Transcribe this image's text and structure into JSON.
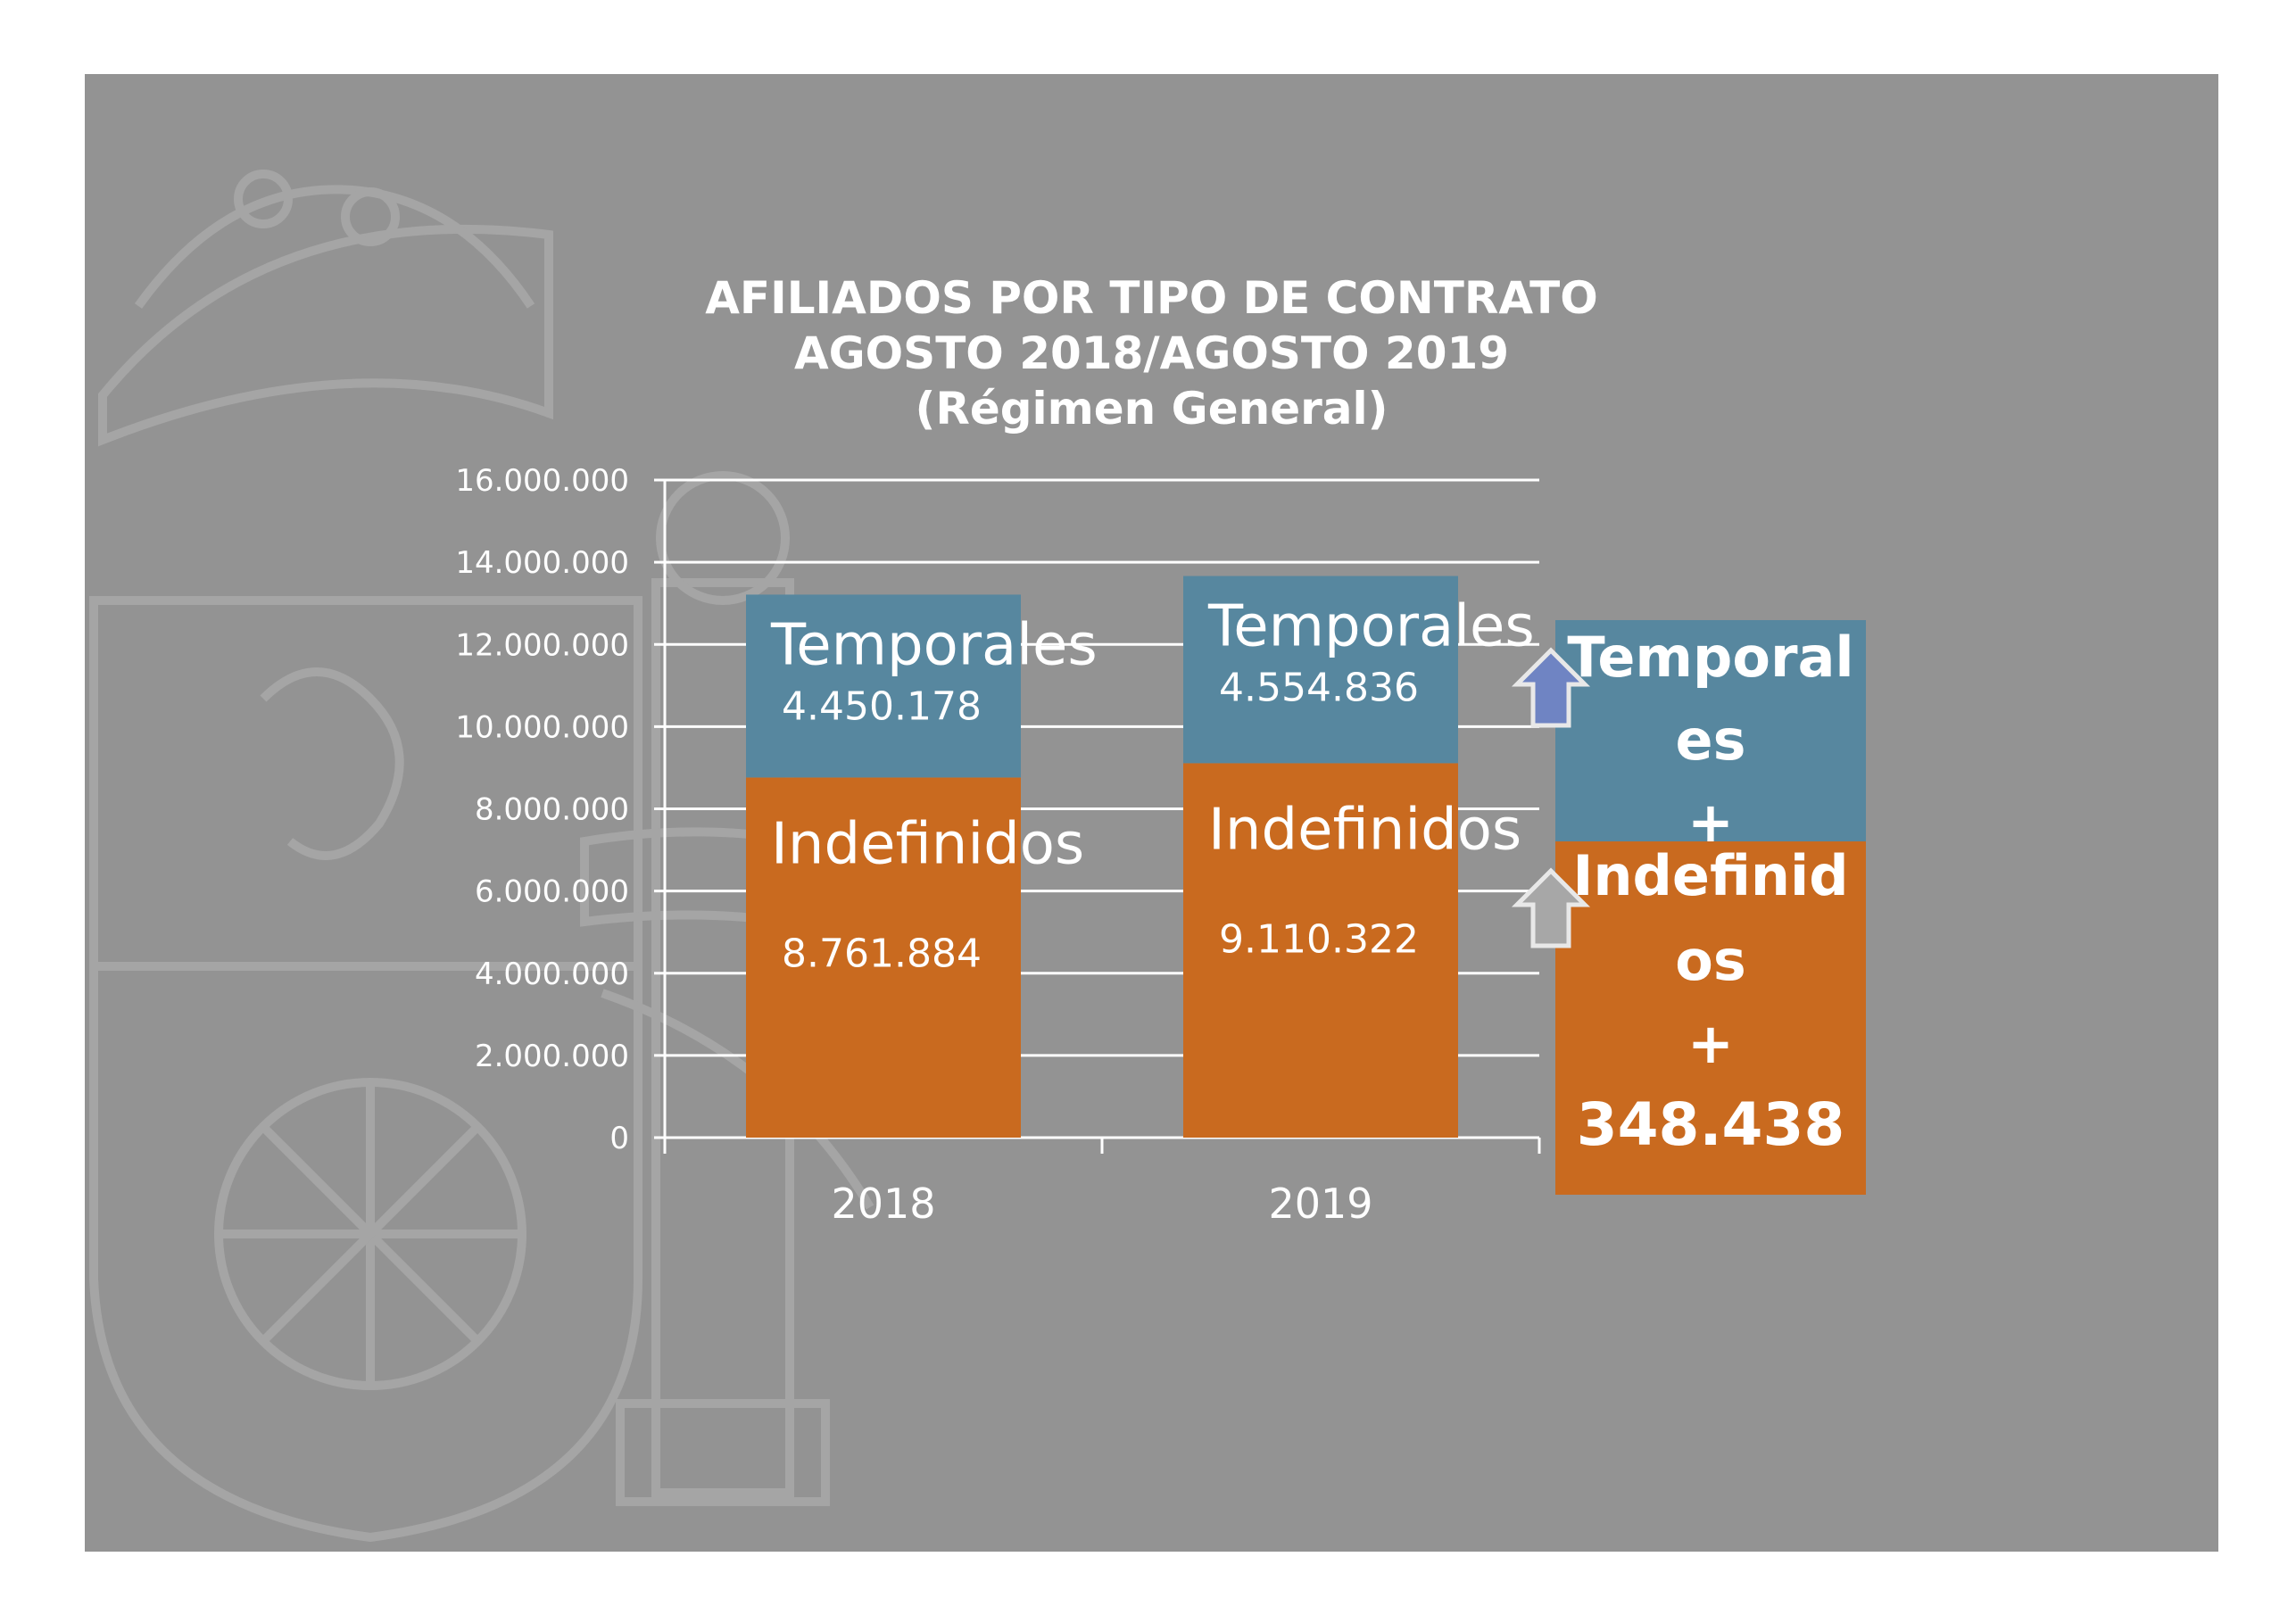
{
  "colors": {
    "slide_background": "#939393",
    "temporales": "#57879f",
    "indefinidos": "#c96a1f",
    "gridline": "#ffffff",
    "text": "#ffffff",
    "arrow_up_temporales": "#6f84c3",
    "arrow_up_indefinidos": "#c96a1f"
  },
  "chart_data": {
    "type": "bar",
    "stacked": true,
    "title": "AFILIADOS POR TIPO DE CONTRATO",
    "subtitle": "AGOSTO 2018/AGOSTO 2019",
    "subtitle2": "(Régimen General)",
    "categories": [
      "2018",
      "2019"
    ],
    "series": [
      {
        "name": "Indefinidos",
        "values": [
          8761884,
          9110322
        ],
        "value_labels": [
          "8.761.884",
          "9.110.322"
        ]
      },
      {
        "name": "Temporales",
        "values": [
          4450178,
          4554836
        ],
        "value_labels": [
          "4.450.178",
          "4.554.836"
        ]
      }
    ],
    "ylim": [
      0,
      16000000
    ],
    "yticks": [
      0,
      2000000,
      4000000,
      6000000,
      8000000,
      10000000,
      12000000,
      14000000,
      16000000
    ],
    "ytick_labels": [
      "0",
      "2.000.000",
      "4.000.000",
      "6.000.000",
      "8.000.000",
      "10.000.000",
      "12.000.000",
      "14.000.000",
      "16.000.000"
    ],
    "grid": true,
    "legend": "none"
  },
  "change_box": {
    "temporales_lines": [
      "Temporal",
      "es",
      "+"
    ],
    "indefinidos_lines": [
      "Indefinid",
      "os",
      "+",
      "348.438"
    ],
    "arrow_up_temporales_icon": "arrow-up-icon",
    "arrow_up_indefinidos_icon": "arrow-up-outline-icon"
  }
}
